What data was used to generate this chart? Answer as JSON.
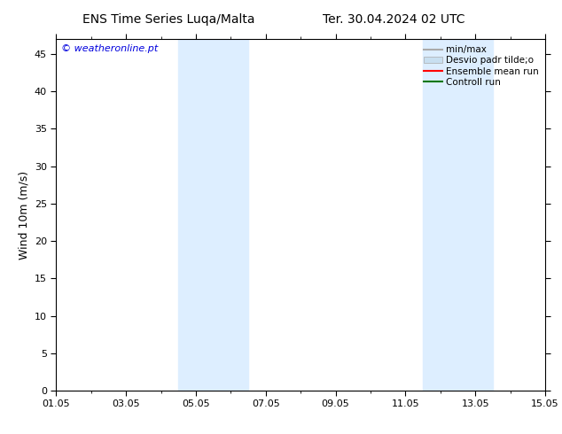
{
  "title_left": "ENS Time Series Luqa/Malta",
  "title_right": "Ter. 30.04.2024 02 UTC",
  "ylabel": "Wind 10m (m/s)",
  "watermark": "© weatheronline.pt",
  "watermark_color": "#0000dd",
  "ylim": [
    0,
    47
  ],
  "yticks": [
    0,
    5,
    10,
    15,
    20,
    25,
    30,
    35,
    40,
    45
  ],
  "xtick_labels": [
    "01.05",
    "03.05",
    "05.05",
    "07.05",
    "09.05",
    "11.05",
    "13.05",
    "15.05"
  ],
  "xtick_positions": [
    0,
    2,
    4,
    6,
    8,
    10,
    12,
    14
  ],
  "x_minor_ticks": [
    0,
    1,
    2,
    3,
    4,
    5,
    6,
    7,
    8,
    9,
    10,
    11,
    12,
    13,
    14
  ],
  "shaded_regions": [
    {
      "x_start": 3.5,
      "x_end": 5.5
    },
    {
      "x_start": 10.5,
      "x_end": 12.5
    }
  ],
  "shaded_color": "#ddeeff",
  "background_color": "#ffffff",
  "legend_items": [
    {
      "label": "min/max",
      "color": "#aaaaaa",
      "type": "line"
    },
    {
      "label": "Desvio padr tilde;o",
      "color": "#c8dff0",
      "type": "patch"
    },
    {
      "label": "Ensemble mean run",
      "color": "#ff0000",
      "type": "line"
    },
    {
      "label": "Controll run",
      "color": "#007700",
      "type": "line"
    }
  ],
  "title_fontsize": 10,
  "label_fontsize": 9,
  "tick_fontsize": 8,
  "legend_fontsize": 7.5,
  "watermark_fontsize": 8
}
